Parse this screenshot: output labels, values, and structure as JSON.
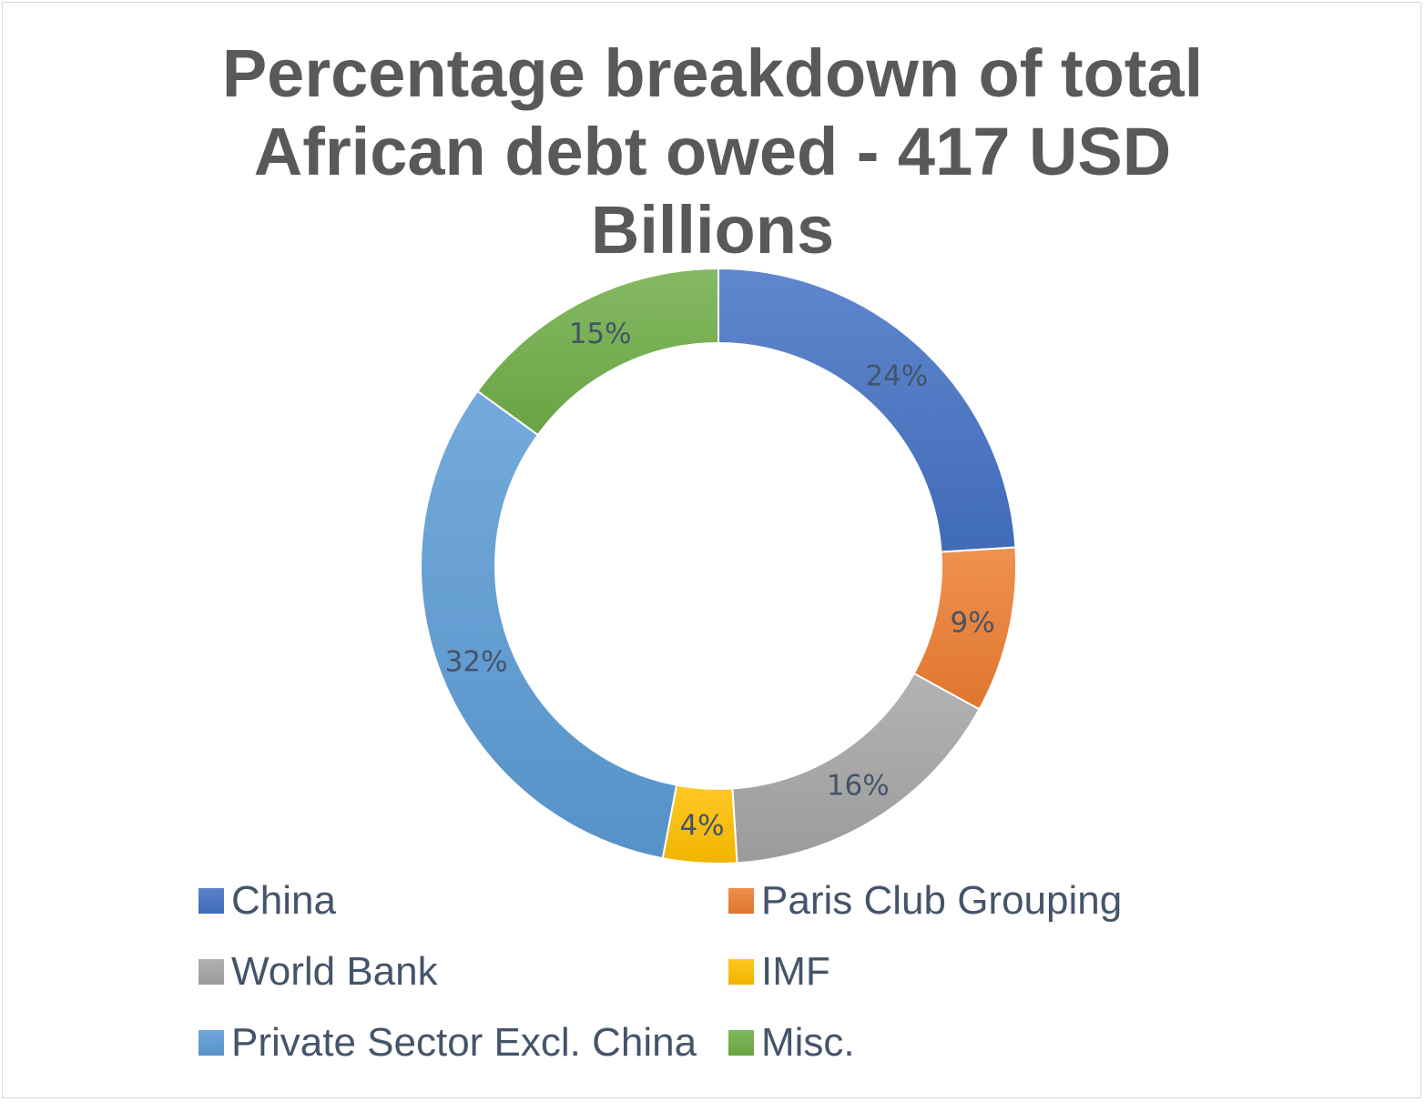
{
  "chart_data": {
    "type": "pie",
    "variant": "donut",
    "title_lines": [
      "Percentage breakdown of total",
      "African  debt owed -  417 USD",
      "Billions"
    ],
    "categories": [
      "China",
      "Paris Club Grouping",
      "World Bank",
      "IMF",
      "Private Sector Excl. China",
      "Misc."
    ],
    "values": [
      24,
      9,
      16,
      4,
      32,
      15
    ],
    "data_labels": [
      "24%",
      "9%",
      "16%",
      "4%",
      "32%",
      "15%"
    ],
    "colors": [
      "#4472c4",
      "#ed7d31",
      "#a5a5a5",
      "#ffc000",
      "#5b9bd5",
      "#70ad47"
    ],
    "legend_position": "bottom"
  }
}
